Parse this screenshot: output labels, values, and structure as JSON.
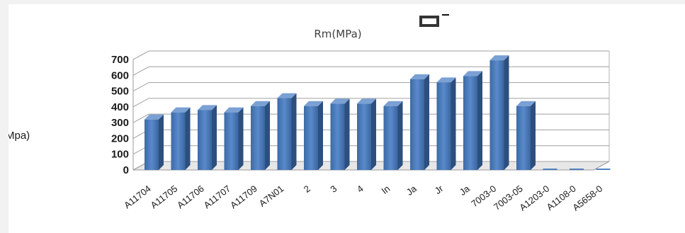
{
  "chart_data": {
    "type": "bar",
    "title": "Rm(MPa)",
    "ylabel": "Mpa)",
    "xlabel": "",
    "ylim": [
      0,
      700
    ],
    "yticks": [
      0,
      100,
      200,
      300,
      400,
      500,
      600,
      700
    ],
    "grid": true,
    "legend": "none",
    "categories": [
      "A11704",
      "A11705",
      "A11706",
      "A11707",
      "A11709",
      "A7N01",
      "2",
      "3",
      "4",
      "In",
      "Ja",
      "Jr",
      "Ja",
      "7003-0",
      "7003-05",
      "A1203-0",
      "A1108-0",
      "A5658-0"
    ],
    "values": [
      320,
      365,
      380,
      365,
      405,
      455,
      405,
      420,
      420,
      405,
      575,
      555,
      595,
      695,
      405,
      0,
      0,
      0
    ],
    "color": "#4f81bd"
  }
}
